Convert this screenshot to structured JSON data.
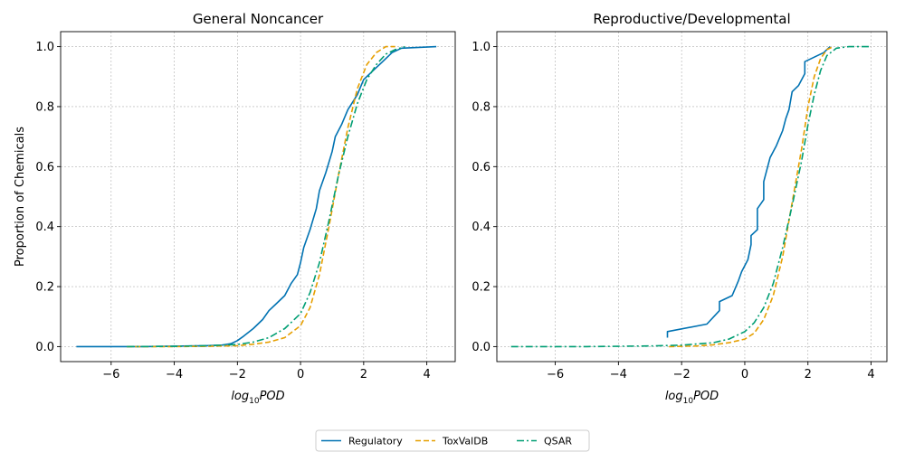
{
  "colors": {
    "regulatory": "#0072B2",
    "toxvaldb": "#E69F00",
    "qsar": "#009E73",
    "grid": "#b0b0b0"
  },
  "legend": {
    "placement": "bottom-center",
    "entries": [
      {
        "key": "regulatory",
        "label": "Regulatory",
        "dash": "solid"
      },
      {
        "key": "toxvaldb",
        "label": "ToxValDB",
        "dash": "dashed"
      },
      {
        "key": "qsar",
        "label": "QSAR",
        "dash": "dashdot"
      }
    ]
  },
  "chart_data": [
    {
      "type": "line",
      "title": "General Noncancer",
      "xlabel_base": "log",
      "xlabel_sub": "10",
      "xlabel_rest": "POD",
      "ylabel": "Proportion of Chemicals",
      "xlim": [
        -7.6,
        4.9
      ],
      "ylim": [
        -0.05,
        1.05
      ],
      "xticks": [
        -6,
        -4,
        -2,
        0,
        2,
        4
      ],
      "xtick_labels": [
        "−6",
        "−4",
        "−2",
        "0",
        "2",
        "4"
      ],
      "yticks": [
        0.0,
        0.2,
        0.4,
        0.6,
        0.8,
        1.0
      ],
      "ytick_labels": [
        "0.0",
        "0.2",
        "0.4",
        "0.6",
        "0.8",
        "1.0"
      ],
      "grid": true,
      "series": [
        {
          "key": "regulatory",
          "name": "Regulatory",
          "x": [
            -7.1,
            -5,
            -3,
            -2.5,
            -2.2,
            -2,
            -1.8,
            -1.5,
            -1.2,
            -1.0,
            -0.8,
            -0.5,
            -0.3,
            -0.1,
            0.0,
            0.1,
            0.3,
            0.5,
            0.6,
            0.8,
            1.0,
            1.1,
            1.3,
            1.5,
            1.8,
            2.0,
            2.3,
            2.6,
            2.9,
            3.2,
            4.3
          ],
          "y": [
            0.0,
            0.0,
            0.003,
            0.005,
            0.01,
            0.02,
            0.035,
            0.06,
            0.09,
            0.12,
            0.14,
            0.17,
            0.21,
            0.24,
            0.28,
            0.33,
            0.39,
            0.46,
            0.52,
            0.58,
            0.65,
            0.7,
            0.74,
            0.79,
            0.84,
            0.89,
            0.92,
            0.95,
            0.98,
            0.995,
            1.0
          ]
        },
        {
          "key": "toxvaldb",
          "name": "ToxValDB",
          "x": [
            -5.5,
            -4,
            -3,
            -2,
            -1.5,
            -1,
            -0.5,
            0,
            0.3,
            0.6,
            0.9,
            1.2,
            1.5,
            1.8,
            2.1,
            2.4,
            2.7,
            3.0
          ],
          "y": [
            0.0,
            0.0,
            0.001,
            0.003,
            0.008,
            0.015,
            0.03,
            0.07,
            0.13,
            0.24,
            0.4,
            0.57,
            0.73,
            0.86,
            0.94,
            0.98,
            1.0,
            1.0
          ]
        },
        {
          "key": "qsar",
          "name": "QSAR",
          "x": [
            -5.5,
            -4,
            -3,
            -2,
            -1.5,
            -1,
            -0.5,
            0,
            0.3,
            0.6,
            0.9,
            1.2,
            1.5,
            1.8,
            2.1,
            2.4,
            2.7,
            3.0,
            3.3
          ],
          "y": [
            0.0,
            0.001,
            0.003,
            0.007,
            0.015,
            0.03,
            0.06,
            0.11,
            0.18,
            0.28,
            0.42,
            0.57,
            0.7,
            0.81,
            0.89,
            0.94,
            0.975,
            0.99,
            1.0
          ]
        }
      ]
    },
    {
      "type": "line",
      "title": "Reproductive/Developmental",
      "xlabel_base": "log",
      "xlabel_sub": "10",
      "xlabel_rest": "POD",
      "ylabel": "",
      "xlim": [
        -7.85,
        4.5
      ],
      "ylim": [
        -0.05,
        1.05
      ],
      "xticks": [
        -6,
        -4,
        -2,
        0,
        2,
        4
      ],
      "xtick_labels": [
        "−6",
        "−4",
        "−2",
        "0",
        "2",
        "4"
      ],
      "yticks": [
        0.0,
        0.2,
        0.4,
        0.6,
        0.8,
        1.0
      ],
      "ytick_labels": [
        "0.0",
        "0.2",
        "0.4",
        "0.6",
        "0.8",
        "1.0"
      ],
      "grid": true,
      "series": [
        {
          "key": "regulatory",
          "name": "Regulatory",
          "x": [
            -2.45,
            -2.45,
            -1.2,
            -0.8,
            -0.8,
            -0.4,
            -0.2,
            -0.1,
            0.1,
            0.2,
            0.2,
            0.4,
            0.4,
            0.6,
            0.6,
            0.8,
            1.0,
            1.2,
            1.3,
            1.4,
            1.5,
            1.7,
            1.9,
            1.9,
            2.5,
            2.7
          ],
          "y": [
            0.03,
            0.05,
            0.075,
            0.12,
            0.15,
            0.17,
            0.22,
            0.25,
            0.29,
            0.34,
            0.37,
            0.39,
            0.46,
            0.49,
            0.55,
            0.63,
            0.67,
            0.72,
            0.76,
            0.79,
            0.85,
            0.87,
            0.91,
            0.95,
            0.98,
            1.0
          ]
        },
        {
          "key": "toxvaldb",
          "name": "ToxValDB",
          "x": [
            -2.4,
            -1.5,
            -1.0,
            -0.5,
            0.0,
            0.3,
            0.6,
            0.9,
            1.2,
            1.5,
            1.8,
            2.0,
            2.2,
            2.4,
            2.6,
            2.8
          ],
          "y": [
            0.0,
            0.002,
            0.006,
            0.013,
            0.025,
            0.045,
            0.09,
            0.17,
            0.3,
            0.48,
            0.66,
            0.8,
            0.9,
            0.96,
            0.99,
            1.0
          ]
        },
        {
          "key": "qsar",
          "name": "QSAR",
          "x": [
            -7.4,
            -5,
            -3,
            -2,
            -1,
            -0.5,
            0.0,
            0.3,
            0.6,
            0.9,
            1.2,
            1.5,
            1.8,
            2.0,
            2.2,
            2.4,
            2.6,
            2.9,
            3.3,
            4.0
          ],
          "y": [
            0.0,
            0.0,
            0.002,
            0.005,
            0.013,
            0.025,
            0.05,
            0.08,
            0.13,
            0.21,
            0.33,
            0.47,
            0.62,
            0.74,
            0.84,
            0.92,
            0.97,
            0.995,
            1.0,
            1.0
          ]
        }
      ]
    }
  ]
}
